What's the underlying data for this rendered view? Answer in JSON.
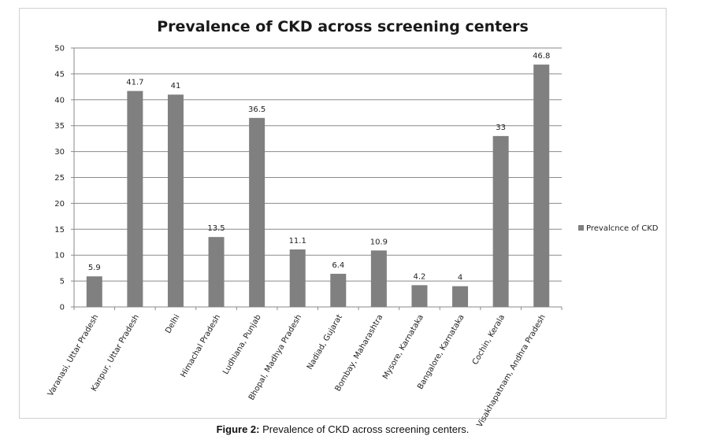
{
  "chart_data": {
    "type": "bar",
    "title": "Prevalence of CKD across screening centers",
    "categories": [
      "Varanasi, Uttar Pradesh",
      "Kanpur, Uttar Pradesh",
      "Delhi",
      "Himachal Pradesh",
      "Ludhiana, Punjab",
      "Bhopal, Madhya Pradesh",
      "Nadiad, Gujarat",
      "Bombay, Maharashtra",
      "Mysore, Karnataka",
      "Bangalore, Karnataka",
      "Cochin, Kerala",
      "Visakhapatnam, Andhra Pradesh"
    ],
    "series": [
      {
        "name": "Prevalcnce of CKD",
        "values": [
          5.9,
          41.7,
          41,
          13.5,
          36.5,
          11.1,
          6.4,
          10.9,
          4.2,
          4,
          33,
          46.8
        ],
        "color": "#808080"
      }
    ],
    "value_labels": [
      "5.9",
      "41.7",
      "41",
      "13.5",
      "36.5",
      "11.1",
      "6.4",
      "10.9",
      "4.2",
      "4",
      "33",
      "46.8"
    ],
    "ylim": [
      0,
      50
    ],
    "yticks": [
      "0",
      "5",
      "10",
      "15",
      "20",
      "25",
      "30",
      "35",
      "40",
      "45",
      "50"
    ],
    "grid": true,
    "legend_position": "right"
  },
  "caption": {
    "label": "Figure 2:",
    "text": " Prevalence of CKD across screening centers."
  }
}
